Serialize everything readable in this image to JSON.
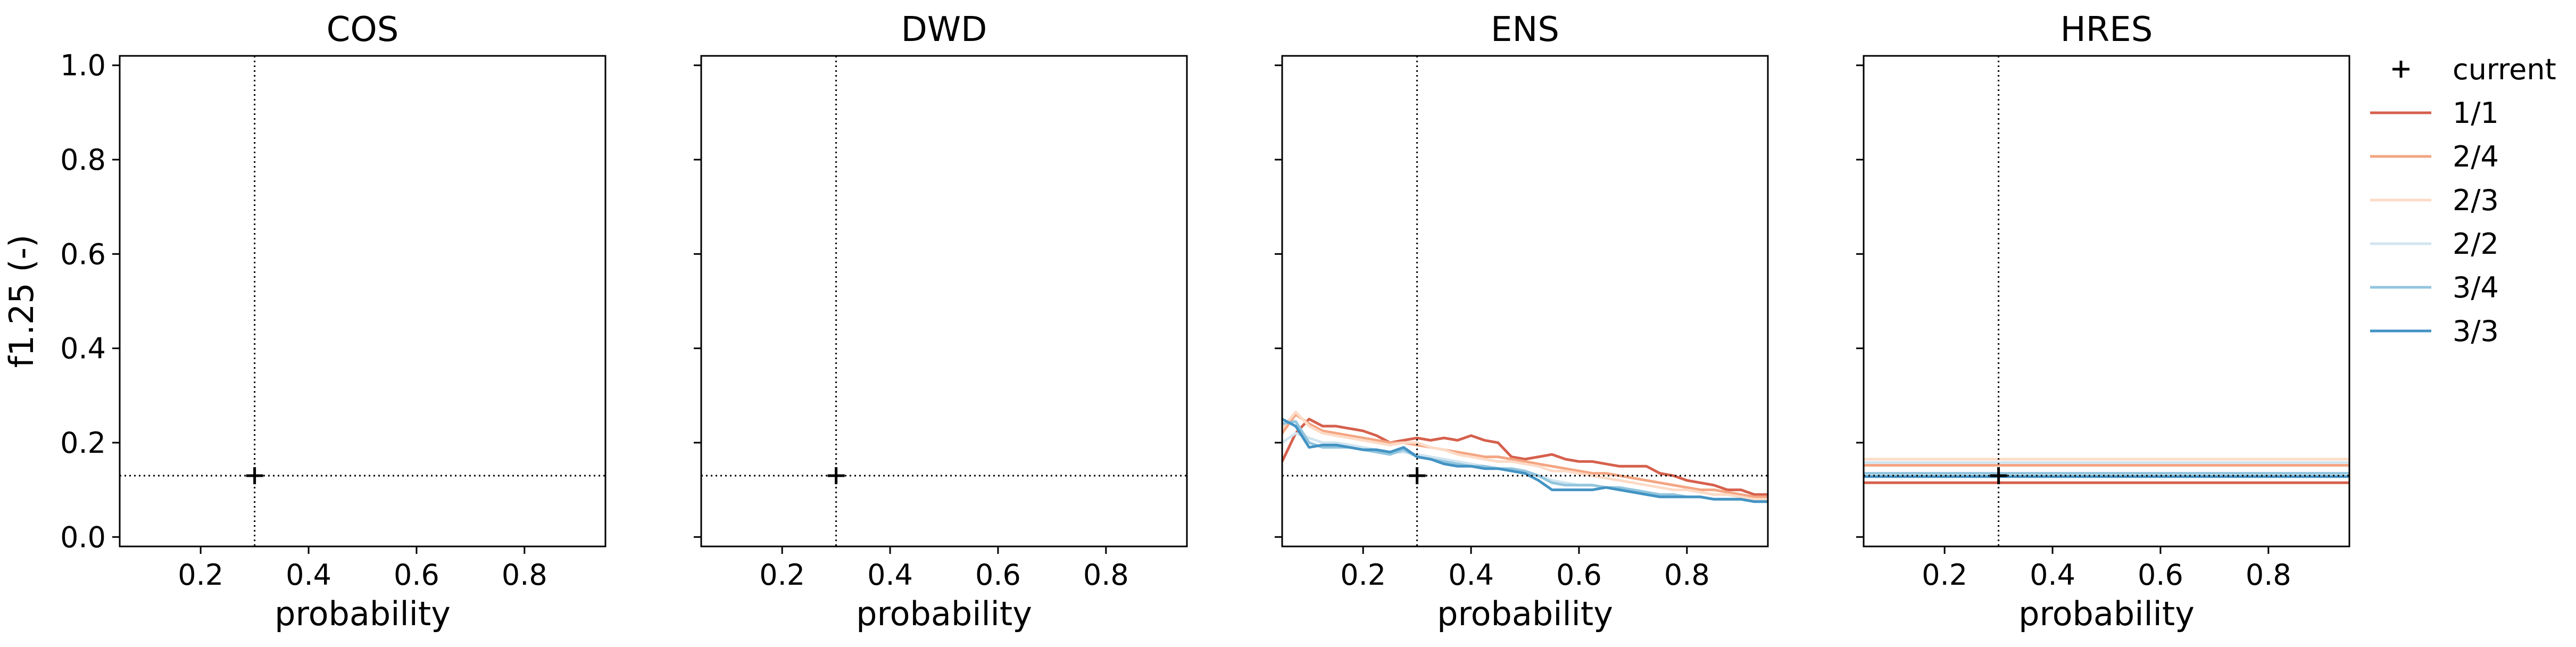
{
  "chart_data": {
    "type": "line",
    "ylabel": "f1.25 (-)",
    "xlim": [
      0.05,
      0.95
    ],
    "ylim": [
      -0.02,
      1.02
    ],
    "xticks": [
      0.2,
      0.4,
      0.6,
      0.8
    ],
    "xtick_labels": [
      "0.2",
      "0.4",
      "0.6",
      "0.8"
    ],
    "yticks": [
      0.0,
      0.2,
      0.4,
      0.6,
      0.8,
      1.0
    ],
    "ytick_labels": [
      "0.0",
      "0.2",
      "0.4",
      "0.6",
      "0.8",
      "1.0"
    ],
    "grid": false,
    "legend": {
      "placement": "outside-right",
      "current_label": "current",
      "entries": [
        {
          "name": "1/1",
          "color": "#d6604d"
        },
        {
          "name": "2/4",
          "color": "#f4a582"
        },
        {
          "name": "2/3",
          "color": "#fddbc7"
        },
        {
          "name": "2/2",
          "color": "#d1e5f0"
        },
        {
          "name": "3/4",
          "color": "#92c5de"
        },
        {
          "name": "3/3",
          "color": "#4393c3"
        }
      ]
    },
    "current": {
      "x": 0.3,
      "y": 0.13
    },
    "panels": [
      {
        "title": "COS",
        "xlabel": "probability",
        "series": []
      },
      {
        "title": "DWD",
        "xlabel": "probability",
        "series": []
      },
      {
        "title": "ENS",
        "xlabel": "probability",
        "series": [
          {
            "name": "1/1",
            "color": "#d6604d",
            "x": [
              0.05,
              0.075,
              0.1,
              0.125,
              0.15,
              0.175,
              0.2,
              0.225,
              0.25,
              0.275,
              0.3,
              0.325,
              0.35,
              0.375,
              0.4,
              0.425,
              0.45,
              0.475,
              0.5,
              0.525,
              0.55,
              0.575,
              0.6,
              0.625,
              0.65,
              0.675,
              0.7,
              0.725,
              0.75,
              0.775,
              0.8,
              0.825,
              0.85,
              0.875,
              0.9,
              0.925,
              0.95
            ],
            "y": [
              0.16,
              0.22,
              0.25,
              0.235,
              0.235,
              0.23,
              0.225,
              0.215,
              0.2,
              0.205,
              0.21,
              0.205,
              0.21,
              0.205,
              0.215,
              0.205,
              0.2,
              0.17,
              0.165,
              0.17,
              0.175,
              0.165,
              0.16,
              0.16,
              0.155,
              0.15,
              0.15,
              0.15,
              0.135,
              0.13,
              0.12,
              0.115,
              0.11,
              0.1,
              0.1,
              0.09,
              0.09
            ]
          },
          {
            "name": "2/4",
            "color": "#f4a582",
            "x": [
              0.05,
              0.075,
              0.1,
              0.125,
              0.15,
              0.175,
              0.2,
              0.225,
              0.25,
              0.275,
              0.3,
              0.325,
              0.35,
              0.375,
              0.4,
              0.425,
              0.45,
              0.475,
              0.5,
              0.525,
              0.55,
              0.575,
              0.6,
              0.625,
              0.65,
              0.675,
              0.7,
              0.725,
              0.75,
              0.775,
              0.8,
              0.825,
              0.85,
              0.875,
              0.9,
              0.925,
              0.95
            ],
            "y": [
              0.22,
              0.26,
              0.24,
              0.225,
              0.22,
              0.215,
              0.21,
              0.205,
              0.2,
              0.2,
              0.195,
              0.19,
              0.185,
              0.18,
              0.175,
              0.17,
              0.17,
              0.165,
              0.16,
              0.155,
              0.15,
              0.145,
              0.14,
              0.135,
              0.135,
              0.13,
              0.125,
              0.12,
              0.115,
              0.11,
              0.105,
              0.1,
              0.1,
              0.095,
              0.09,
              0.085,
              0.085
            ]
          },
          {
            "name": "2/3",
            "color": "#fddbc7",
            "x": [
              0.05,
              0.075,
              0.1,
              0.125,
              0.15,
              0.175,
              0.2,
              0.225,
              0.25,
              0.275,
              0.3,
              0.325,
              0.35,
              0.375,
              0.4,
              0.425,
              0.45,
              0.475,
              0.5,
              0.525,
              0.55,
              0.575,
              0.6,
              0.625,
              0.65,
              0.675,
              0.7,
              0.725,
              0.75,
              0.775,
              0.8,
              0.825,
              0.85,
              0.875,
              0.9,
              0.925,
              0.95
            ],
            "y": [
              0.23,
              0.265,
              0.235,
              0.22,
              0.215,
              0.21,
              0.205,
              0.2,
              0.195,
              0.2,
              0.2,
              0.19,
              0.185,
              0.175,
              0.17,
              0.165,
              0.16,
              0.16,
              0.155,
              0.15,
              0.14,
              0.14,
              0.135,
              0.13,
              0.125,
              0.12,
              0.115,
              0.11,
              0.105,
              0.1,
              0.1,
              0.095,
              0.09,
              0.09,
              0.085,
              0.08,
              0.08
            ]
          },
          {
            "name": "2/2",
            "color": "#d1e5f0",
            "x": [
              0.05,
              0.075,
              0.1,
              0.125,
              0.15,
              0.175,
              0.2,
              0.225,
              0.25,
              0.275,
              0.3,
              0.325,
              0.35,
              0.375,
              0.4,
              0.425,
              0.45,
              0.475,
              0.5,
              0.525,
              0.55,
              0.575,
              0.6,
              0.625,
              0.65,
              0.675,
              0.7,
              0.725,
              0.75,
              0.775,
              0.8,
              0.825,
              0.85,
              0.875,
              0.9,
              0.925,
              0.95
            ],
            "y": [
              0.2,
              0.22,
              0.21,
              0.2,
              0.2,
              0.195,
              0.19,
              0.185,
              0.18,
              0.18,
              0.175,
              0.17,
              0.165,
              0.16,
              0.155,
              0.15,
              0.145,
              0.14,
              0.135,
              0.13,
              0.12,
              0.115,
              0.11,
              0.11,
              0.105,
              0.1,
              0.1,
              0.095,
              0.09,
              0.09,
              0.085,
              0.085,
              0.08,
              0.08,
              0.08,
              0.075,
              0.075
            ]
          },
          {
            "name": "3/4",
            "color": "#92c5de",
            "x": [
              0.05,
              0.075,
              0.1,
              0.125,
              0.15,
              0.175,
              0.2,
              0.225,
              0.25,
              0.275,
              0.3,
              0.325,
              0.35,
              0.375,
              0.4,
              0.425,
              0.45,
              0.475,
              0.5,
              0.525,
              0.55,
              0.575,
              0.6,
              0.625,
              0.65,
              0.675,
              0.7,
              0.725,
              0.75,
              0.775,
              0.8,
              0.825,
              0.85,
              0.875,
              0.9,
              0.925,
              0.95
            ],
            "y": [
              0.24,
              0.245,
              0.2,
              0.19,
              0.19,
              0.19,
              0.185,
              0.18,
              0.175,
              0.185,
              0.17,
              0.165,
              0.16,
              0.155,
              0.15,
              0.15,
              0.145,
              0.145,
              0.14,
              0.13,
              0.115,
              0.11,
              0.11,
              0.11,
              0.105,
              0.105,
              0.1,
              0.095,
              0.09,
              0.09,
              0.085,
              0.085,
              0.08,
              0.08,
              0.08,
              0.075,
              0.075
            ]
          },
          {
            "name": "3/3",
            "color": "#4393c3",
            "x": [
              0.05,
              0.075,
              0.1,
              0.125,
              0.15,
              0.175,
              0.2,
              0.225,
              0.25,
              0.275,
              0.3,
              0.325,
              0.35,
              0.375,
              0.4,
              0.425,
              0.45,
              0.475,
              0.5,
              0.525,
              0.55,
              0.575,
              0.6,
              0.625,
              0.65,
              0.675,
              0.7,
              0.725,
              0.75,
              0.775,
              0.8,
              0.825,
              0.85,
              0.875,
              0.9,
              0.925,
              0.95
            ],
            "y": [
              0.25,
              0.235,
              0.19,
              0.195,
              0.195,
              0.19,
              0.185,
              0.185,
              0.18,
              0.19,
              0.17,
              0.165,
              0.155,
              0.15,
              0.15,
              0.145,
              0.145,
              0.14,
              0.135,
              0.12,
              0.1,
              0.1,
              0.1,
              0.1,
              0.105,
              0.1,
              0.095,
              0.09,
              0.085,
              0.085,
              0.085,
              0.085,
              0.08,
              0.08,
              0.08,
              0.075,
              0.075
            ]
          }
        ]
      },
      {
        "title": "HRES",
        "xlabel": "probability",
        "series": [
          {
            "name": "1/1",
            "color": "#d6604d",
            "x": [
              0.05,
              0.95
            ],
            "y": [
              0.115,
              0.115
            ]
          },
          {
            "name": "2/4",
            "color": "#f4a582",
            "x": [
              0.05,
              0.95
            ],
            "y": [
              0.152,
              0.152
            ]
          },
          {
            "name": "2/3",
            "color": "#fddbc7",
            "x": [
              0.05,
              0.95
            ],
            "y": [
              0.165,
              0.165
            ]
          },
          {
            "name": "2/2",
            "color": "#d1e5f0",
            "x": [
              0.05,
              0.95
            ],
            "y": [
              0.158,
              0.158
            ]
          },
          {
            "name": "3/4",
            "color": "#92c5de",
            "x": [
              0.05,
              0.95
            ],
            "y": [
              0.135,
              0.135
            ]
          },
          {
            "name": "3/3",
            "color": "#4393c3",
            "x": [
              0.05,
              0.95
            ],
            "y": [
              0.128,
              0.128
            ]
          }
        ]
      }
    ]
  }
}
